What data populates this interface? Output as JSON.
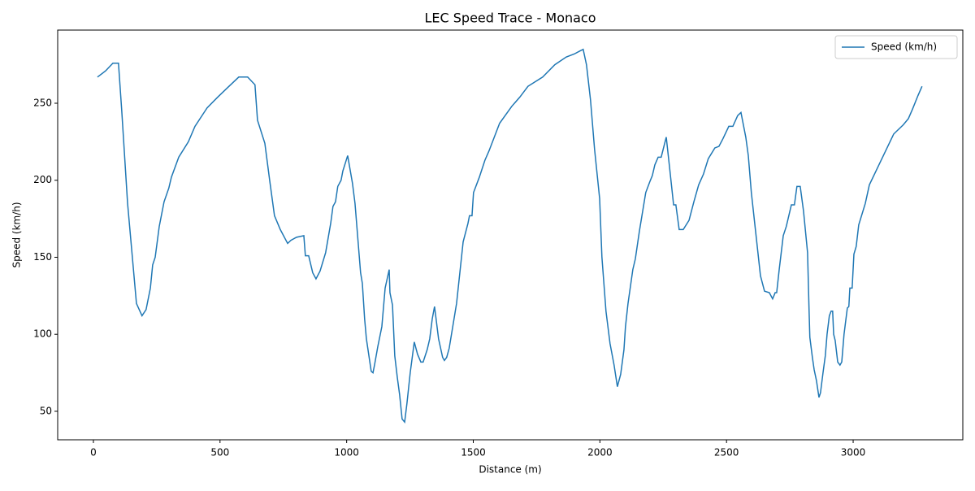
{
  "chart_data": {
    "type": "line",
    "title": "LEC Speed Trace - Monaco",
    "x_label": "Distance (m)",
    "y_label": "Speed (km/h)",
    "x": [
      16,
      48,
      77,
      99,
      112,
      135,
      170,
      192,
      208,
      225,
      234,
      244,
      260,
      279,
      298,
      308,
      337,
      375,
      401,
      449,
      491,
      529,
      574,
      609,
      638,
      648,
      677,
      696,
      715,
      738,
      767,
      780,
      802,
      831,
      837,
      850,
      866,
      879,
      895,
      917,
      937,
      946,
      956,
      965,
      978,
      985,
      1004,
      1023,
      1033,
      1055,
      1062,
      1071,
      1078,
      1097,
      1104,
      1110,
      1123,
      1139,
      1152,
      1168,
      1171,
      1181,
      1190,
      1200,
      1209,
      1219,
      1229,
      1238,
      1251,
      1267,
      1280,
      1293,
      1302,
      1318,
      1328,
      1338,
      1347,
      1363,
      1379,
      1386,
      1395,
      1405,
      1418,
      1434,
      1447,
      1460,
      1479,
      1485,
      1495,
      1501,
      1524,
      1546,
      1562,
      1604,
      1652,
      1684,
      1716,
      1774,
      1822,
      1867,
      1899,
      1922,
      1934,
      1947,
      1963,
      1979,
      1999,
      2008,
      2024,
      2040,
      2056,
      2069,
      2082,
      2095,
      2101,
      2111,
      2130,
      2140,
      2156,
      2181,
      2197,
      2207,
      2217,
      2230,
      2242,
      2262,
      2274,
      2291,
      2300,
      2313,
      2329,
      2352,
      2371,
      2390,
      2409,
      2428,
      2454,
      2470,
      2486,
      2509,
      2525,
      2544,
      2557,
      2576,
      2586,
      2598,
      2614,
      2634,
      2650,
      2669,
      2682,
      2692,
      2698,
      2708,
      2724,
      2736,
      2756,
      2768,
      2778,
      2791,
      2804,
      2820,
      2826,
      2829,
      2839,
      2846,
      2855,
      2865,
      2871,
      2881,
      2890,
      2897,
      2906,
      2913,
      2919,
      2923,
      2929,
      2939,
      2948,
      2955,
      2964,
      2977,
      2983,
      2987,
      2996,
      3003,
      3012,
      3022,
      3048,
      3064,
      3096,
      3160,
      3198,
      3218,
      3234,
      3256,
      3272
    ],
    "series": [
      {
        "name": "Speed (km/h)",
        "color": "#1f77b4",
        "values": [
          267,
          271,
          276,
          276,
          245,
          185,
          120,
          112,
          116,
          130,
          145,
          150,
          170,
          186,
          195,
          202,
          215,
          225,
          235,
          247,
          254,
          260,
          267,
          267,
          262,
          239,
          224,
          200,
          177,
          168,
          159,
          161,
          163,
          164,
          151,
          151,
          140,
          136,
          141,
          153,
          172,
          183,
          186,
          196,
          200,
          206,
          216,
          198,
          185,
          140,
          133,
          110,
          97,
          76,
          75,
          80,
          92,
          105,
          130,
          142,
          127,
          119,
          86,
          72,
          61,
          45,
          43,
          55,
          75,
          95,
          87,
          82,
          82,
          90,
          97,
          110,
          118,
          97,
          85,
          83,
          85,
          91,
          104,
          120,
          140,
          160,
          172,
          177,
          177,
          192,
          202,
          213,
          219,
          237,
          248,
          254,
          261,
          267,
          275,
          280,
          282,
          284,
          285,
          275,
          252,
          220,
          188,
          150,
          115,
          94,
          80,
          66,
          74,
          90,
          105,
          120,
          142,
          149,
          167,
          192,
          199,
          203,
          210,
          215,
          215,
          228,
          210,
          184,
          184,
          168,
          168,
          174,
          186,
          197,
          204,
          214,
          221,
          222,
          227,
          235,
          235,
          242,
          244,
          228,
          216,
          192,
          168,
          138,
          128,
          127,
          123,
          127,
          127,
          142,
          164,
          170,
          184,
          184,
          196,
          196,
          180,
          153,
          115,
          98,
          85,
          77,
          70,
          59,
          62,
          75,
          86,
          100,
          112,
          115,
          115,
          100,
          96,
          82,
          80,
          82,
          100,
          117,
          118,
          130,
          130,
          152,
          157,
          171,
          185,
          197,
          208,
          230,
          236,
          240,
          246,
          255,
          261
        ]
      }
    ],
    "xlim": [
      -141,
      3433
    ],
    "ylim": [
      31.5,
      297.5
    ],
    "xticks": [
      0,
      500,
      1000,
      1500,
      2000,
      2500,
      3000
    ],
    "yticks": [
      50,
      100,
      150,
      200,
      250
    ],
    "legend": "upper right",
    "grid": false
  }
}
